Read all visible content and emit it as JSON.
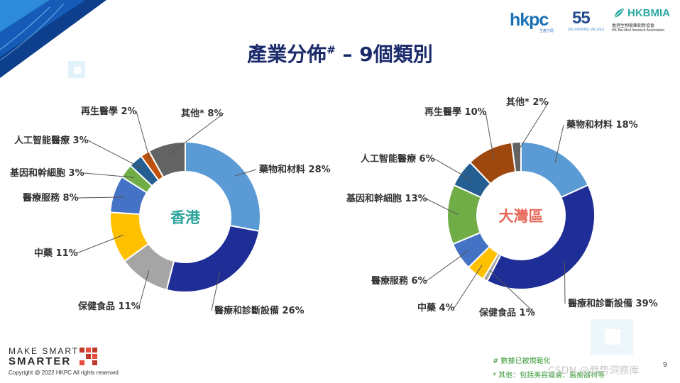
{
  "slide": {
    "title": "產業分佈",
    "title_mark": "#",
    "title_suffix": " – 9個類別",
    "page_number": "9",
    "notes": [
      "# 數據已被規範化",
      "* 其他：包括美容護膚、醫療器材等"
    ],
    "copyright": "Copyright @ 2022 HKPC All rights reserved",
    "brand_line1": "MAKE SMART",
    "brand_line2": "SMARTER",
    "watermark": "CSDN @趋势洞察库"
  },
  "logos": {
    "hkpc": "hkpc",
    "hkpc_sub": "生產力局",
    "fiftyfive": "55",
    "fiftyfive_sub": "DELIVERING VALUES",
    "hkbmia": "HKBMIA",
    "hkbmia_cn": "香港生物醫藥創新協會",
    "hkbmia_en": "HK Bio-Med Innotech Association"
  },
  "colors": {
    "title": "#1b2a6b",
    "center_hk": "#2aa39b",
    "center_gba": "#e8685a",
    "leader": "#555555"
  },
  "chart_data": [
    {
      "type": "pie",
      "donut": true,
      "center_label": "香港",
      "slices": [
        {
          "label": "藥物和材料",
          "value": 28,
          "color": "#5b9bd5"
        },
        {
          "label": "醫療和診斷設備",
          "value": 26,
          "color": "#1f2e96"
        },
        {
          "label": "保健食品",
          "value": 11,
          "color": "#a5a5a5"
        },
        {
          "label": "中藥",
          "value": 11,
          "color": "#ffc000"
        },
        {
          "label": "醫療服務",
          "value": 8,
          "color": "#4472c4"
        },
        {
          "label": "基因和幹細胞",
          "value": 3,
          "color": "#70ad47"
        },
        {
          "label": "人工智能醫療",
          "value": 3,
          "color": "#255e91"
        },
        {
          "label": "再生醫學",
          "value": 2,
          "color": "#c0500a"
        },
        {
          "label": "其他*",
          "value": 8,
          "color": "#636363"
        }
      ]
    },
    {
      "type": "pie",
      "donut": true,
      "center_label": "大灣區",
      "slices": [
        {
          "label": "藥物和材料",
          "value": 18,
          "color": "#5b9bd5"
        },
        {
          "label": "醫療和診斷設備",
          "value": 39,
          "color": "#1f2e96"
        },
        {
          "label": "保健食品",
          "value": 1,
          "color": "#a5a5a5"
        },
        {
          "label": "中藥",
          "value": 4,
          "color": "#ffc000"
        },
        {
          "label": "醫療服務",
          "value": 6,
          "color": "#4472c4"
        },
        {
          "label": "基因和幹細胞",
          "value": 13,
          "color": "#70ad47"
        },
        {
          "label": "人工智能醫療",
          "value": 6,
          "color": "#255e91"
        },
        {
          "label": "再生醫學",
          "value": 10,
          "color": "#9e480e"
        },
        {
          "label": "其他*",
          "value": 2,
          "color": "#636363"
        }
      ]
    }
  ]
}
